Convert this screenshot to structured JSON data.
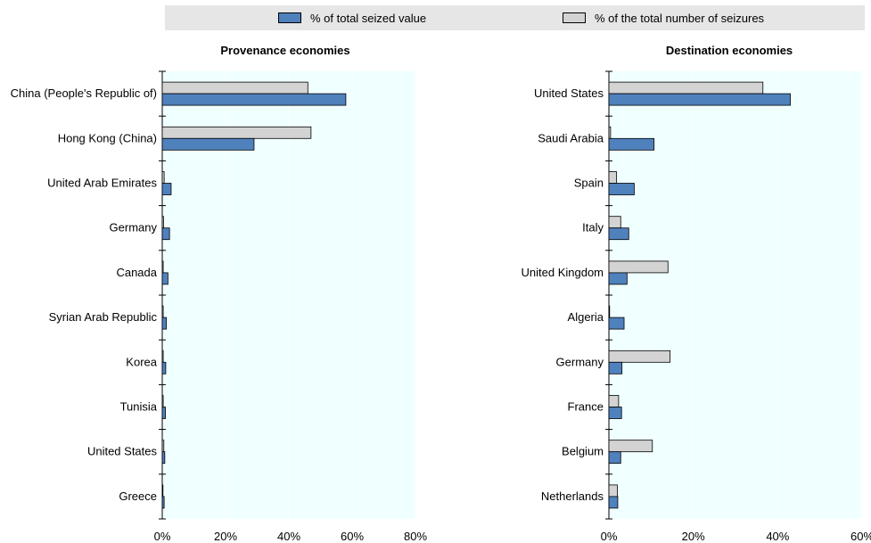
{
  "legend": {
    "value_label": "% of total seized value",
    "count_label": "% of the total number of seizures",
    "value_color": "#4f81bd",
    "count_color": "#d3d3d3"
  },
  "colors": {
    "plot_background": "#f0ffff",
    "gridline": "#ffffff"
  },
  "chart_data": [
    {
      "type": "bar",
      "orientation": "horizontal",
      "title": "Provenance economies",
      "categories": [
        "China (People's Republic of)",
        "Hong Kong (China)",
        "United Arab Emirates",
        "Germany",
        "Canada",
        "Syrian Arab Republic",
        "Korea",
        "Tunisia",
        "United States",
        "Greece"
      ],
      "series": [
        {
          "name": "% of the total number of seizures",
          "values": [
            46,
            47,
            0.6,
            0.4,
            0.3,
            0.3,
            0.3,
            0.3,
            0.5,
            0.2
          ]
        },
        {
          "name": "% of total seized value",
          "values": [
            58,
            29,
            2.8,
            2.3,
            1.8,
            1.3,
            1.1,
            1.0,
            0.8,
            0.6
          ]
        }
      ],
      "xlim": [
        0,
        80
      ],
      "xticks": [
        "0%",
        "20%",
        "40%",
        "60%",
        "80%"
      ],
      "grid": true
    },
    {
      "type": "bar",
      "orientation": "horizontal",
      "title": "Destination economies",
      "categories": [
        "United States",
        "Saudi Arabia",
        "Spain",
        "Italy",
        "United Kingdom",
        "Algeria",
        "Germany",
        "France",
        "Belgium",
        "Netherlands"
      ],
      "series": [
        {
          "name": "% of the total number of seizures",
          "values": [
            36.5,
            0.4,
            1.8,
            2.8,
            14,
            0,
            14.5,
            2.3,
            10.3,
            2.0
          ]
        },
        {
          "name": "% of total seized value",
          "values": [
            43,
            10.7,
            6.0,
            4.7,
            4.3,
            3.6,
            3.1,
            3.0,
            2.8,
            2.1
          ]
        }
      ],
      "xlim": [
        0,
        60
      ],
      "xticks": [
        "0%",
        "20%",
        "40%",
        "60%"
      ],
      "grid": true
    }
  ]
}
